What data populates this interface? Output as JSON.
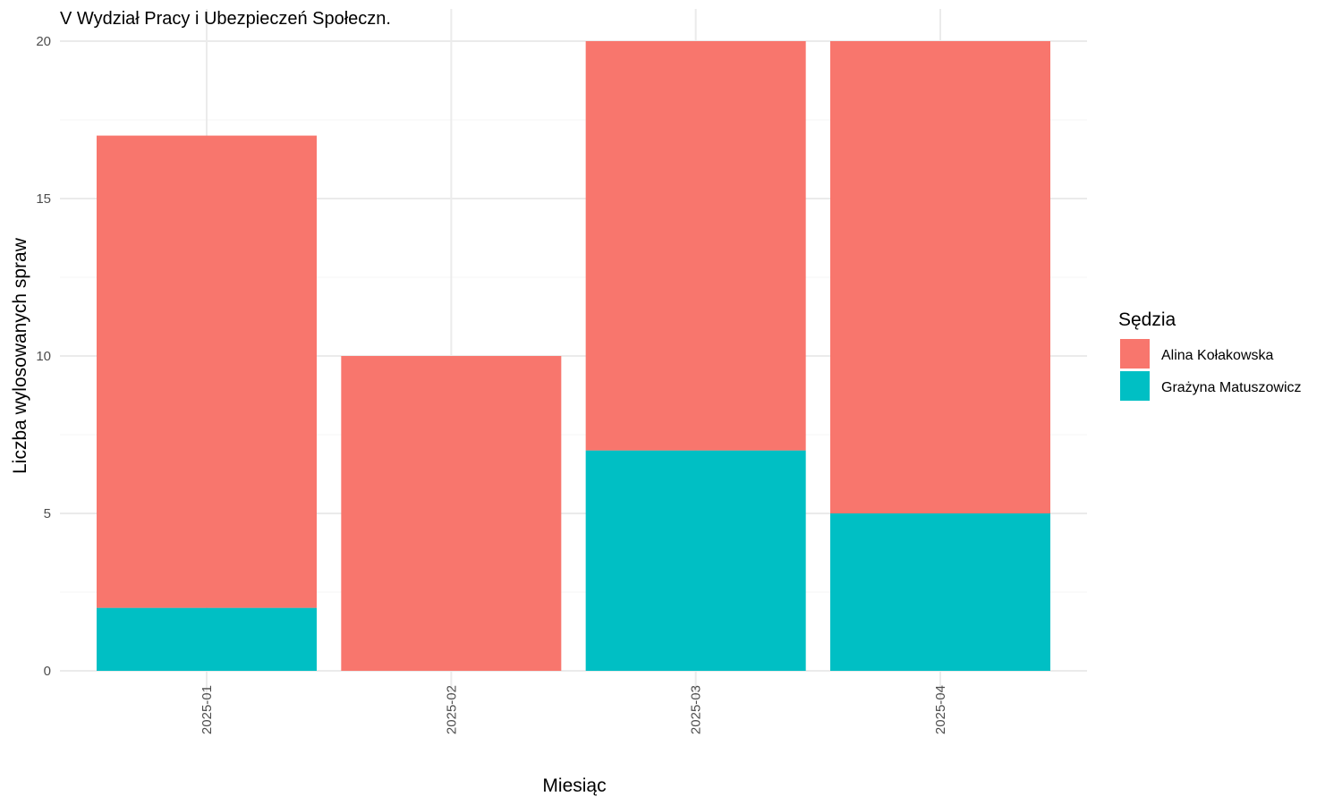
{
  "chart_data": {
    "type": "bar",
    "stacked": true,
    "title": "V Wydział Pracy i Ubezpieczeń Społeczn.",
    "xlabel": "Miesiąc",
    "ylabel": "Liczba wylosowanych spraw",
    "categories": [
      "2025-01",
      "2025-02",
      "2025-03",
      "2025-04"
    ],
    "series": [
      {
        "name": "Grażyna Matuszowicz",
        "color": "#00BFC4",
        "values": [
          2,
          0,
          7,
          5
        ]
      },
      {
        "name": "Alina Kołakowska",
        "color": "#F8766D",
        "values": [
          15,
          10,
          13,
          15
        ]
      }
    ],
    "ylim": [
      0,
      20
    ],
    "yticks": [
      0,
      5,
      10,
      15,
      20
    ],
    "grid": true,
    "legend": {
      "title": "Sędzia",
      "placement": "right",
      "order": [
        "Alina Kołakowska",
        "Grażyna Matuszowicz"
      ]
    }
  }
}
